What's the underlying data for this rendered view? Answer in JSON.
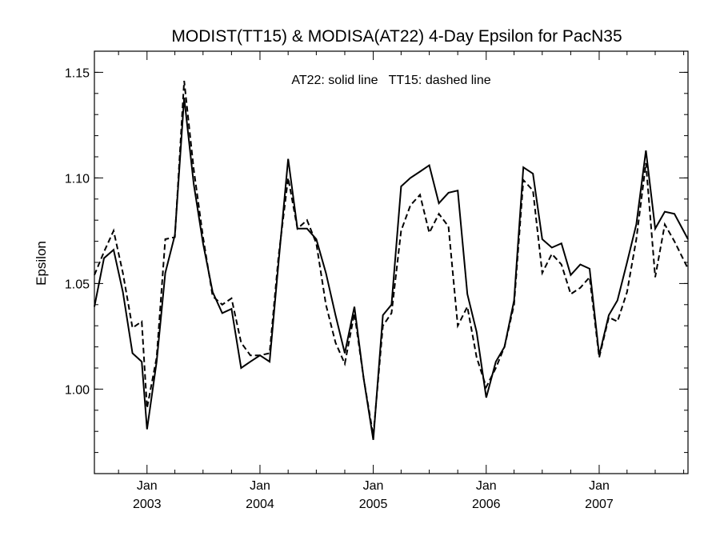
{
  "chart_data": {
    "type": "line",
    "title": "MODIST(TT15) & MODISA(AT22) 4-Day Epsilon for PacN35",
    "annotation": "AT22: solid line   TT15: dashed line",
    "ylabel": "Epsilon",
    "xlabel": "",
    "xlim": [
      "2002-07-15",
      "2007-10-15"
    ],
    "ylim": [
      0.96,
      1.16
    ],
    "y_ticks": [
      "1.00",
      "1.05",
      "1.10",
      "1.15"
    ],
    "x_ticks": [
      {
        "date": "2003-01-01",
        "month": "Jan",
        "year": "2003"
      },
      {
        "date": "2004-01-01",
        "month": "Jan",
        "year": "2004"
      },
      {
        "date": "2005-01-01",
        "month": "Jan",
        "year": "2005"
      },
      {
        "date": "2006-01-01",
        "month": "Jan",
        "year": "2006"
      },
      {
        "date": "2007-01-01",
        "month": "Jan",
        "year": "2007"
      }
    ],
    "grid": false,
    "series": [
      {
        "name": "AT22",
        "style": "solid",
        "points": [
          [
            "2002-07-15",
            1.039
          ],
          [
            "2002-08-15",
            1.062
          ],
          [
            "2002-09-15",
            1.066
          ],
          [
            "2002-10-15",
            1.046
          ],
          [
            "2002-11-15",
            1.017
          ],
          [
            "2002-12-15",
            1.013
          ],
          [
            "2003-01-01",
            0.981
          ],
          [
            "2003-02-01",
            1.013
          ],
          [
            "2003-03-01",
            1.055
          ],
          [
            "2003-04-01",
            1.073
          ],
          [
            "2003-05-01",
            1.138
          ],
          [
            "2003-06-01",
            1.097
          ],
          [
            "2003-07-01",
            1.069
          ],
          [
            "2003-08-01",
            1.046
          ],
          [
            "2003-09-01",
            1.036
          ],
          [
            "2003-10-01",
            1.038
          ],
          [
            "2003-11-01",
            1.01
          ],
          [
            "2003-12-01",
            1.013
          ],
          [
            "2004-01-01",
            1.016
          ],
          [
            "2004-02-01",
            1.013
          ],
          [
            "2004-03-01",
            1.06
          ],
          [
            "2004-04-01",
            1.109
          ],
          [
            "2004-05-01",
            1.076
          ],
          [
            "2004-06-01",
            1.076
          ],
          [
            "2004-07-01",
            1.071
          ],
          [
            "2004-08-01",
            1.055
          ],
          [
            "2004-09-01",
            1.035
          ],
          [
            "2004-10-01",
            1.017
          ],
          [
            "2004-11-01",
            1.039
          ],
          [
            "2004-12-01",
            1.005
          ],
          [
            "2005-01-01",
            0.976
          ],
          [
            "2005-02-01",
            1.035
          ],
          [
            "2005-03-01",
            1.04
          ],
          [
            "2005-04-01",
            1.096
          ],
          [
            "2005-05-01",
            1.1
          ],
          [
            "2005-06-01",
            1.103
          ],
          [
            "2005-07-01",
            1.106
          ],
          [
            "2005-08-01",
            1.088
          ],
          [
            "2005-09-01",
            1.093
          ],
          [
            "2005-10-01",
            1.094
          ],
          [
            "2005-11-01",
            1.045
          ],
          [
            "2005-12-01",
            1.027
          ],
          [
            "2006-01-01",
            0.996
          ],
          [
            "2006-02-01",
            1.013
          ],
          [
            "2006-03-01",
            1.02
          ],
          [
            "2006-04-01",
            1.042
          ],
          [
            "2006-05-01",
            1.105
          ],
          [
            "2006-06-01",
            1.102
          ],
          [
            "2006-07-01",
            1.071
          ],
          [
            "2006-08-01",
            1.067
          ],
          [
            "2006-09-01",
            1.069
          ],
          [
            "2006-10-01",
            1.054
          ],
          [
            "2006-11-01",
            1.059
          ],
          [
            "2006-12-01",
            1.057
          ],
          [
            "2007-01-01",
            1.016
          ],
          [
            "2007-02-01",
            1.035
          ],
          [
            "2007-03-01",
            1.042
          ],
          [
            "2007-04-01",
            1.06
          ],
          [
            "2007-05-01",
            1.078
          ],
          [
            "2007-06-01",
            1.113
          ],
          [
            "2007-07-01",
            1.076
          ],
          [
            "2007-08-01",
            1.084
          ],
          [
            "2007-09-01",
            1.083
          ],
          [
            "2007-10-15",
            1.071
          ]
        ]
      },
      {
        "name": "TT15",
        "style": "dashed",
        "points": [
          [
            "2002-07-15",
            1.054
          ],
          [
            "2002-08-15",
            1.065
          ],
          [
            "2002-09-15",
            1.075
          ],
          [
            "2002-10-15",
            1.055
          ],
          [
            "2002-11-15",
            1.029
          ],
          [
            "2002-12-15",
            1.032
          ],
          [
            "2003-01-01",
            0.991
          ],
          [
            "2003-02-01",
            1.015
          ],
          [
            "2003-03-01",
            1.071
          ],
          [
            "2003-04-01",
            1.072
          ],
          [
            "2003-05-01",
            1.146
          ],
          [
            "2003-06-01",
            1.104
          ],
          [
            "2003-07-01",
            1.072
          ],
          [
            "2003-08-01",
            1.044
          ],
          [
            "2003-09-01",
            1.04
          ],
          [
            "2003-10-01",
            1.043
          ],
          [
            "2003-11-01",
            1.022
          ],
          [
            "2003-12-01",
            1.016
          ],
          [
            "2004-01-01",
            1.016
          ],
          [
            "2004-02-01",
            1.017
          ],
          [
            "2004-03-01",
            1.063
          ],
          [
            "2004-04-01",
            1.1
          ],
          [
            "2004-05-01",
            1.076
          ],
          [
            "2004-06-01",
            1.08
          ],
          [
            "2004-07-01",
            1.069
          ],
          [
            "2004-08-01",
            1.04
          ],
          [
            "2004-09-01",
            1.022
          ],
          [
            "2004-10-01",
            1.012
          ],
          [
            "2004-11-01",
            1.036
          ],
          [
            "2004-12-01",
            1.005
          ],
          [
            "2005-01-01",
            0.978
          ],
          [
            "2005-02-01",
            1.03
          ],
          [
            "2005-03-01",
            1.036
          ],
          [
            "2005-04-01",
            1.075
          ],
          [
            "2005-05-01",
            1.087
          ],
          [
            "2005-06-01",
            1.092
          ],
          [
            "2005-07-01",
            1.074
          ],
          [
            "2005-08-01",
            1.083
          ],
          [
            "2005-09-01",
            1.077
          ],
          [
            "2005-10-01",
            1.03
          ],
          [
            "2005-11-01",
            1.039
          ],
          [
            "2005-12-01",
            1.015
          ],
          [
            "2006-01-01",
            1.001
          ],
          [
            "2006-02-01",
            1.01
          ],
          [
            "2006-03-01",
            1.02
          ],
          [
            "2006-04-01",
            1.04
          ],
          [
            "2006-05-01",
            1.099
          ],
          [
            "2006-06-01",
            1.094
          ],
          [
            "2006-07-01",
            1.055
          ],
          [
            "2006-08-01",
            1.064
          ],
          [
            "2006-09-01",
            1.059
          ],
          [
            "2006-10-01",
            1.045
          ],
          [
            "2006-11-01",
            1.048
          ],
          [
            "2006-12-01",
            1.053
          ],
          [
            "2007-01-01",
            1.015
          ],
          [
            "2007-02-01",
            1.034
          ],
          [
            "2007-03-01",
            1.032
          ],
          [
            "2007-04-01",
            1.046
          ],
          [
            "2007-05-01",
            1.071
          ],
          [
            "2007-06-01",
            1.107
          ],
          [
            "2007-07-01",
            1.053
          ],
          [
            "2007-08-01",
            1.078
          ],
          [
            "2007-09-01",
            1.07
          ],
          [
            "2007-10-15",
            1.057
          ]
        ]
      }
    ]
  }
}
